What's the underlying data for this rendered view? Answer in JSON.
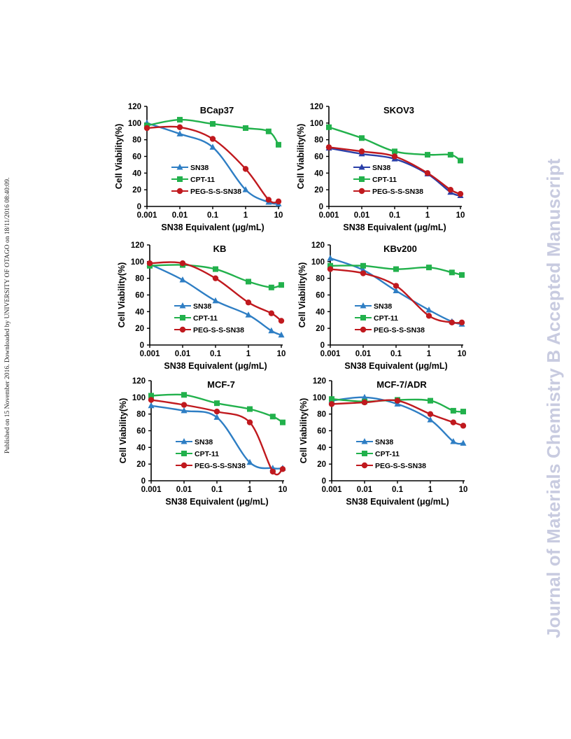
{
  "margin_left_text": "Published on 15 November 2016. Downloaded by UNIVERSITY OF OTAGO on 18/11/2016 08:40:09.",
  "margin_right_text": "Journal of Materials Chemistry B Accepted Manuscript",
  "colors": {
    "SN38": "#2e7ec4",
    "CPT-11": "#22b14c",
    "PEG-S-S-SN38": "#c0191e",
    "SN38_alt": "#2a3fa8"
  },
  "chart_data": [
    {
      "type": "line",
      "title": "BCap37",
      "xlabel": "SN38 Equivalent  (μg/mL)",
      "ylabel": "Cell Viability(%)",
      "xscale": "log",
      "xlim": [
        0.001,
        10
      ],
      "ylim": [
        0,
        120
      ],
      "xticks": [
        "0.001",
        "0.01",
        "0.1",
        "1",
        "10"
      ],
      "yticks": [
        "0",
        "20",
        "40",
        "60",
        "80",
        "100",
        "120"
      ],
      "x": [
        0.001,
        0.01,
        0.1,
        1,
        5,
        10
      ],
      "series": [
        {
          "name": "SN38",
          "marker": "triangle",
          "values": [
            100,
            87,
            71,
            20,
            5,
            3
          ]
        },
        {
          "name": "CPT-11",
          "marker": "square",
          "values": [
            97,
            104,
            99,
            94,
            90,
            74
          ]
        },
        {
          "name": "PEG-S-S-SN38",
          "marker": "circle",
          "values": [
            94,
            95,
            81,
            45,
            8,
            6
          ]
        }
      ]
    },
    {
      "type": "line",
      "title": "SKOV3",
      "xlabel": "SN38 Equivalent  (μg/mL)",
      "ylabel": "Cell Viability(%)",
      "xscale": "log",
      "xlim": [
        0.001,
        10
      ],
      "ylim": [
        0,
        120
      ],
      "xticks": [
        "0.001",
        "0.01",
        "0.1",
        "1",
        "10"
      ],
      "yticks": [
        "0",
        "20",
        "40",
        "60",
        "80",
        "100",
        "120"
      ],
      "x": [
        0.001,
        0.01,
        0.1,
        1,
        5,
        10
      ],
      "series": [
        {
          "name": "SN38",
          "marker": "triangle",
          "color_key": "SN38_alt",
          "values": [
            70,
            63,
            57,
            39,
            17,
            13
          ]
        },
        {
          "name": "CPT-11",
          "marker": "square",
          "values": [
            95,
            82,
            66,
            62,
            62,
            55
          ]
        },
        {
          "name": "PEG-S-S-SN38",
          "marker": "circle",
          "values": [
            71,
            66,
            60,
            40,
            20,
            15
          ]
        }
      ]
    },
    {
      "type": "line",
      "title": "KB",
      "xlabel": "SN38 Equivalent  (μg/mL)",
      "ylabel": "Cell Viability(%)",
      "xscale": "log",
      "xlim": [
        0.001,
        10
      ],
      "ylim": [
        0,
        120
      ],
      "xticks": [
        "0.001",
        "0.01",
        "0.1",
        "1",
        "10"
      ],
      "yticks": [
        "0",
        "20",
        "40",
        "60",
        "80",
        "100",
        "120"
      ],
      "x": [
        0.001,
        0.01,
        0.1,
        1,
        5,
        10
      ],
      "series": [
        {
          "name": "SN38",
          "marker": "triangle",
          "values": [
            97,
            78,
            53,
            36,
            17,
            12
          ]
        },
        {
          "name": "CPT-11",
          "marker": "square",
          "values": [
            95,
            96,
            91,
            76,
            69,
            72
          ]
        },
        {
          "name": "PEG-S-S-SN38",
          "marker": "circle",
          "values": [
            98,
            98,
            80,
            51,
            38,
            29
          ]
        }
      ]
    },
    {
      "type": "line",
      "title": "KBv200",
      "xlabel": "SN38 Equivalent  (μg/mL)",
      "ylabel": "Cell Viability(%)",
      "xscale": "log",
      "xlim": [
        0.001,
        10
      ],
      "ylim": [
        0,
        120
      ],
      "xticks": [
        "0.001",
        "0.01",
        "0.1",
        "1",
        "10"
      ],
      "yticks": [
        "0",
        "20",
        "40",
        "60",
        "80",
        "100",
        "120"
      ],
      "x": [
        0.001,
        0.01,
        0.1,
        1,
        5,
        10
      ],
      "series": [
        {
          "name": "SN38",
          "marker": "triangle",
          "values": [
            104,
            90,
            65,
            42,
            28,
            25
          ]
        },
        {
          "name": "CPT-11",
          "marker": "square",
          "values": [
            95,
            95,
            91,
            93,
            87,
            84
          ]
        },
        {
          "name": "PEG-S-S-SN38",
          "marker": "circle",
          "values": [
            91,
            86,
            71,
            35,
            27,
            27
          ]
        }
      ]
    },
    {
      "type": "line",
      "title": "MCF-7",
      "xlabel": "SN38 Equivalent  (μg/mL)",
      "ylabel": "Cell Viability(%)",
      "xscale": "log",
      "xlim": [
        0.001,
        10
      ],
      "ylim": [
        0,
        120
      ],
      "xticks": [
        "0.001",
        "0.01",
        "0.1",
        "1",
        "10"
      ],
      "yticks": [
        "0",
        "20",
        "40",
        "60",
        "80",
        "100",
        "120"
      ],
      "x": [
        0.001,
        0.01,
        0.1,
        1,
        5,
        10
      ],
      "series": [
        {
          "name": "SN38",
          "marker": "triangle",
          "values": [
            90,
            84,
            76,
            22,
            15,
            15
          ]
        },
        {
          "name": "CPT-11",
          "marker": "square",
          "values": [
            102,
            103,
            93,
            86,
            77,
            70
          ]
        },
        {
          "name": "PEG-S-S-SN38",
          "marker": "circle",
          "values": [
            97,
            91,
            83,
            70,
            11,
            14
          ]
        }
      ]
    },
    {
      "type": "line",
      "title": "MCF-7/ADR",
      "xlabel": "SN38 Equivalent  (μg/mL)",
      "ylabel": "Cell Viability(%)",
      "xscale": "log",
      "xlim": [
        0.001,
        10
      ],
      "ylim": [
        0,
        120
      ],
      "xticks": [
        "0.001",
        "0.01",
        "0.1",
        "1",
        "10"
      ],
      "yticks": [
        "0",
        "20",
        "40",
        "60",
        "80",
        "100",
        "120"
      ],
      "x": [
        0.001,
        0.01,
        0.1,
        1,
        5,
        10
      ],
      "series": [
        {
          "name": "SN38",
          "marker": "triangle",
          "values": [
            96,
            100,
            92,
            73,
            47,
            45
          ]
        },
        {
          "name": "CPT-11",
          "marker": "square",
          "values": [
            98,
            95,
            97,
            96,
            84,
            83
          ]
        },
        {
          "name": "PEG-S-S-SN38",
          "marker": "circle",
          "values": [
            92,
            94,
            96,
            80,
            70,
            66
          ]
        }
      ]
    }
  ]
}
